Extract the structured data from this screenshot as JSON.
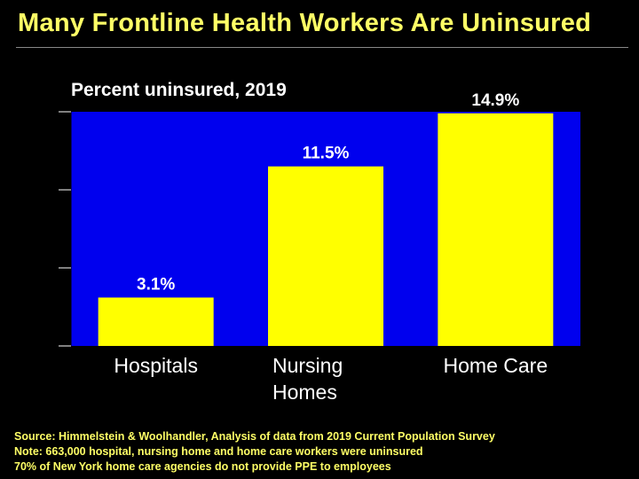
{
  "title": "Many Frontline Health Workers Are Uninsured",
  "colors": {
    "background": "#000000",
    "plot_area": "#0000ee",
    "bar": "#ffff00",
    "title": "#ffff66",
    "text": "#ffffff",
    "data_label": "#ffffff"
  },
  "chart_data": {
    "type": "bar",
    "title": "Many Frontline Health Workers Are Uninsured",
    "subtitle": "Percent uninsured, 2019",
    "categories": [
      "Hospitals",
      "Nursing Homes",
      "Home Care"
    ],
    "category_lines": [
      [
        "Hospitals"
      ],
      [
        "Nursing",
        "Homes"
      ],
      [
        "Home Care"
      ]
    ],
    "values": [
      3.1,
      11.5,
      14.9
    ],
    "data_labels": [
      "3.1%",
      "11.5%",
      "14.9%"
    ],
    "xlabel": "",
    "ylabel": "",
    "ylim": [
      0,
      15
    ],
    "y_ticks": [
      0,
      5,
      10,
      15
    ],
    "show_tick_labels": false,
    "grid": false,
    "legend": "none"
  },
  "footer": {
    "source": "Source: Himmelstein & Woolhandler, Analysis of data from 2019 Current Population Survey",
    "note": "Note: 663,000 hospital, nursing home and home care workers were uninsured",
    "ppe": "70% of New York home care agencies do not provide PPE to employees"
  }
}
